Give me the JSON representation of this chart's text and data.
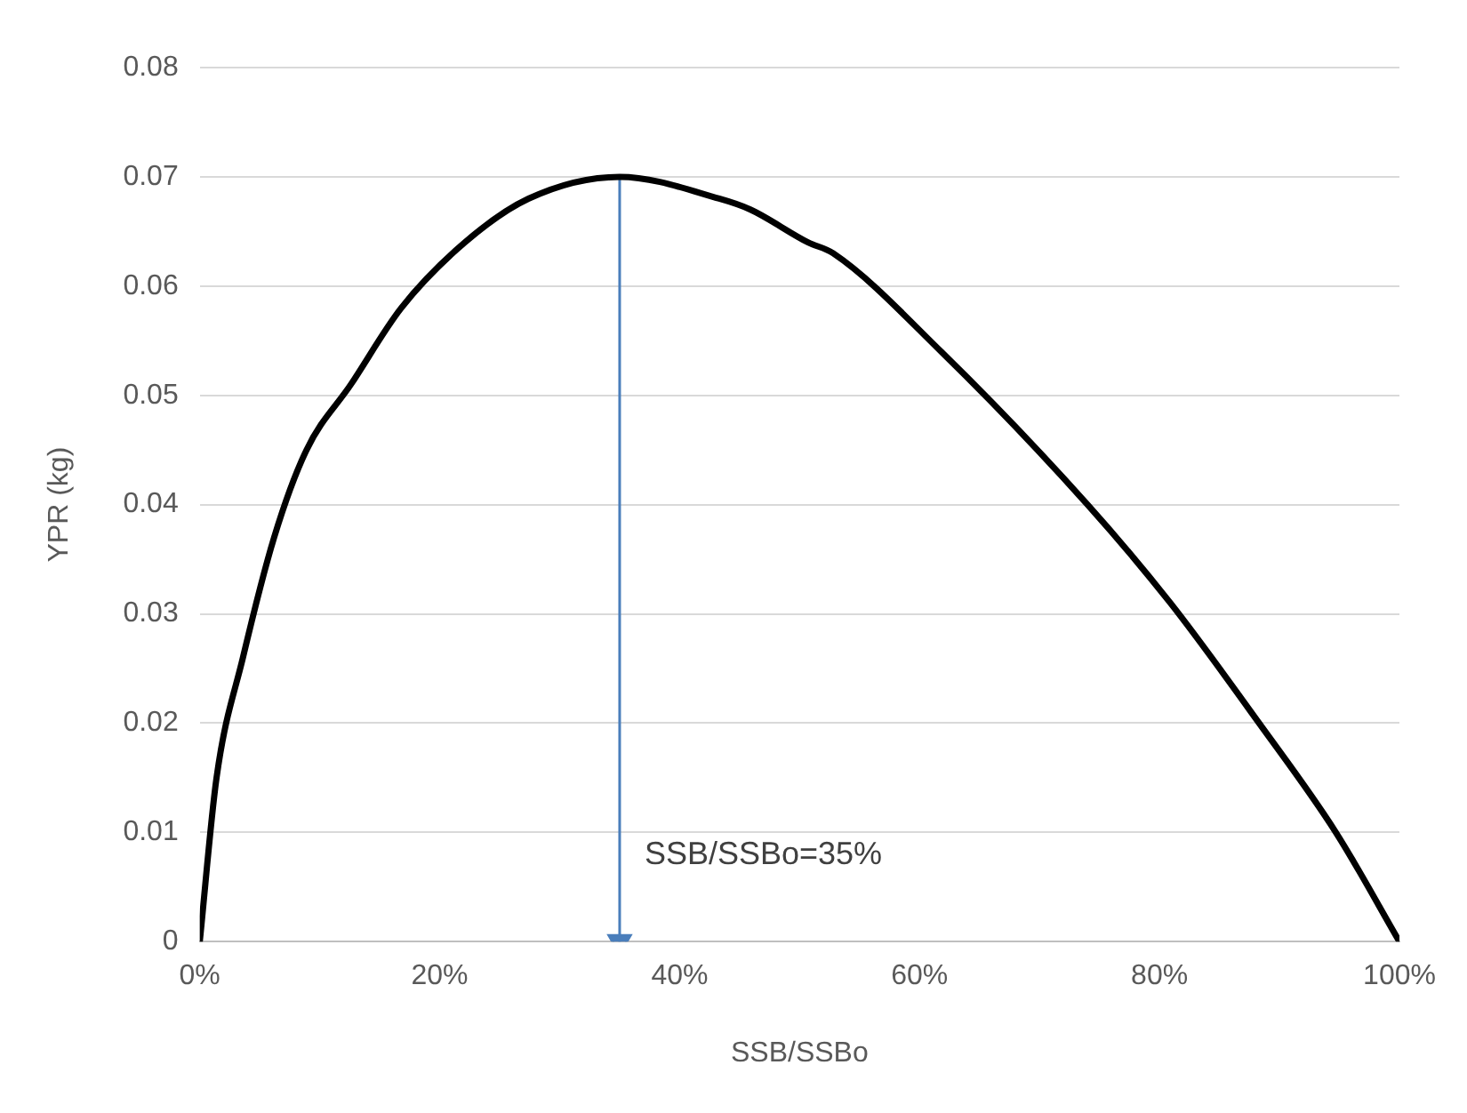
{
  "chart_data": {
    "type": "line",
    "xlabel": "SSB/SSBo",
    "ylabel": "YPR (kg)",
    "xlim": [
      0,
      100
    ],
    "xticks": [
      {
        "value": 0,
        "label": "0%"
      },
      {
        "value": 20,
        "label": "20%"
      },
      {
        "value": 40,
        "label": "40%"
      },
      {
        "value": 60,
        "label": "60%"
      },
      {
        "value": 80,
        "label": "80%"
      },
      {
        "value": 100,
        "label": "100%"
      }
    ],
    "ylim": [
      0,
      0.08
    ],
    "yticks": [
      {
        "value": 0,
        "label": "0"
      },
      {
        "value": 0.01,
        "label": "0.01"
      },
      {
        "value": 0.02,
        "label": "0.02"
      },
      {
        "value": 0.03,
        "label": "0.03"
      },
      {
        "value": 0.04,
        "label": "0.04"
      },
      {
        "value": 0.05,
        "label": "0.05"
      },
      {
        "value": 0.06,
        "label": "0.06"
      },
      {
        "value": 0.07,
        "label": "0.07"
      },
      {
        "value": 0.08,
        "label": "0.08"
      }
    ],
    "grid": "y",
    "legend": false,
    "series": [
      {
        "color": "#000000",
        "marker": "none",
        "x": [
          0,
          1.4,
          3.6,
          6.2,
          8.9,
          12.6,
          16.8,
          22.1,
          27.4,
          35,
          43.3,
          45.9,
          50.7,
          52.8,
          61.8,
          74,
          80.9,
          88.3,
          94.7,
          100
        ],
        "values": [
          0,
          0.015,
          0.026,
          0.037,
          0.045,
          0.051,
          0.058,
          0.064,
          0.068,
          0.07,
          0.068,
          0.067,
          0.064,
          0.063,
          0.054,
          0.04,
          0.031,
          0.02,
          0.01,
          0
        ]
      },
      {
        "color": "#4a7ebb",
        "marker": "triangle",
        "x": [
          35,
          35
        ],
        "values": [
          0.07,
          0
        ]
      }
    ],
    "annotations": [
      {
        "text": "SSB/SSBo=35%",
        "x": 35,
        "y": 0.005
      }
    ]
  }
}
